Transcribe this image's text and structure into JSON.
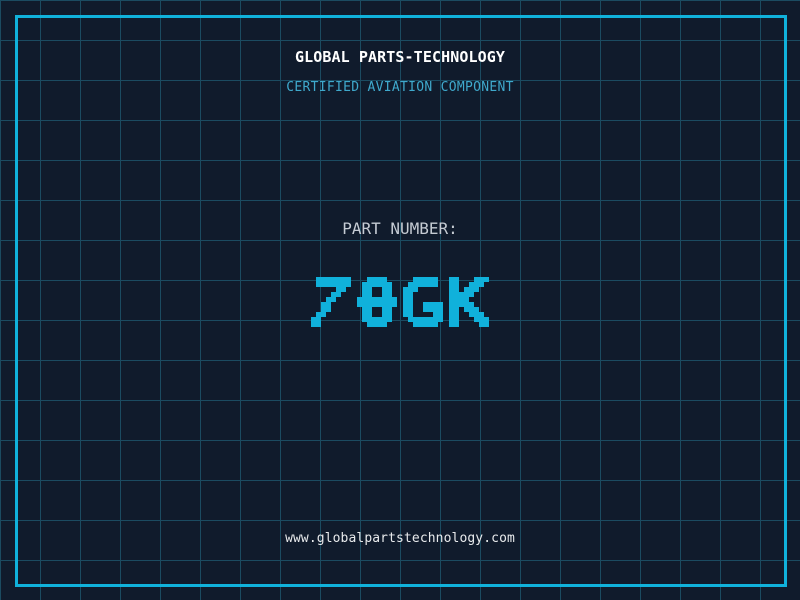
{
  "colors": {
    "bg": "#101b2c",
    "grid": "#1b4b61",
    "frame": "#10b1db",
    "accent": "#10b1db",
    "subtitle": "#3fa9cc",
    "title": "#ffffff",
    "label": "#c5cbd3",
    "url": "#e8eaec"
  },
  "header": {
    "company_name": "GLOBAL PARTS-TECHNOLOGY",
    "subtitle": "CERTIFIED AVIATION COMPONENT"
  },
  "part": {
    "label": "PART NUMBER:",
    "number": "78GK"
  },
  "footer": {
    "website": "www.globalpartstechnology.com"
  }
}
